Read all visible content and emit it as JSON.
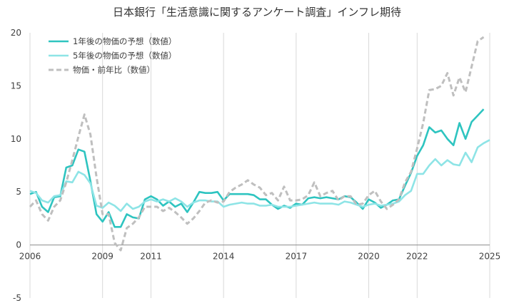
{
  "chart_data": {
    "type": "line",
    "title": "日本銀行「生活意識に関するアンケート調査」インフレ期待",
    "xlabel": "",
    "ylabel": "",
    "xlim": [
      2006,
      2025
    ],
    "ylim": [
      -5,
      20
    ],
    "grid": "vertical",
    "legend_position": "top-left",
    "x_ticks": [
      "2006",
      "2009",
      "2011",
      "2014",
      "2017",
      "2020",
      "2022",
      "2025"
    ],
    "y_ticks": [
      "20",
      "15",
      "10",
      "5",
      "0",
      "-5"
    ],
    "series": [
      {
        "name": "1年後の物価の予想（数値）",
        "color": "#2ec4c0",
        "dash": "solid",
        "points": [
          [
            2006.0,
            4.8
          ],
          [
            2006.25,
            5.0
          ],
          [
            2006.5,
            3.6
          ],
          [
            2006.75,
            3.1
          ],
          [
            2007.0,
            4.5
          ],
          [
            2007.25,
            4.6
          ],
          [
            2007.5,
            7.3
          ],
          [
            2007.75,
            7.5
          ],
          [
            2008.0,
            9.0
          ],
          [
            2008.25,
            8.8
          ],
          [
            2008.5,
            6.0
          ],
          [
            2008.75,
            2.9
          ],
          [
            2009.0,
            2.2
          ],
          [
            2009.25,
            3.1
          ],
          [
            2009.5,
            1.7
          ],
          [
            2009.75,
            1.7
          ],
          [
            2010.0,
            2.9
          ],
          [
            2010.25,
            2.6
          ],
          [
            2010.5,
            2.5
          ],
          [
            2010.75,
            4.3
          ],
          [
            2011.0,
            4.6
          ],
          [
            2011.25,
            4.3
          ],
          [
            2011.5,
            3.7
          ],
          [
            2011.75,
            4.1
          ],
          [
            2012.0,
            3.6
          ],
          [
            2012.25,
            3.9
          ],
          [
            2012.5,
            3.1
          ],
          [
            2012.75,
            4.0
          ],
          [
            2013.0,
            5.0
          ],
          [
            2013.25,
            4.9
          ],
          [
            2013.5,
            4.9
          ],
          [
            2013.75,
            5.0
          ],
          [
            2014.0,
            4.2
          ],
          [
            2014.25,
            4.8
          ],
          [
            2014.5,
            4.8
          ],
          [
            2014.75,
            4.8
          ],
          [
            2015.0,
            4.8
          ],
          [
            2015.25,
            4.7
          ],
          [
            2015.5,
            4.3
          ],
          [
            2015.75,
            4.3
          ],
          [
            2016.0,
            3.8
          ],
          [
            2016.25,
            3.4
          ],
          [
            2016.5,
            3.7
          ],
          [
            2016.75,
            3.5
          ],
          [
            2017.0,
            3.9
          ],
          [
            2017.25,
            3.8
          ],
          [
            2017.5,
            4.4
          ],
          [
            2017.75,
            4.5
          ],
          [
            2018.0,
            4.4
          ],
          [
            2018.25,
            4.5
          ],
          [
            2018.5,
            4.4
          ],
          [
            2018.75,
            4.3
          ],
          [
            2019.0,
            4.6
          ],
          [
            2019.25,
            4.5
          ],
          [
            2019.5,
            4.0
          ],
          [
            2019.75,
            3.4
          ],
          [
            2020.0,
            4.3
          ],
          [
            2020.25,
            4.0
          ],
          [
            2020.5,
            3.5
          ],
          [
            2020.75,
            3.8
          ],
          [
            2021.0,
            4.2
          ],
          [
            2021.25,
            4.3
          ],
          [
            2021.5,
            5.6
          ],
          [
            2021.75,
            6.8
          ],
          [
            2022.0,
            8.4
          ],
          [
            2022.25,
            9.4
          ],
          [
            2022.5,
            11.1
          ],
          [
            2022.75,
            10.6
          ],
          [
            2023.0,
            10.8
          ],
          [
            2023.25,
            10.0
          ],
          [
            2023.5,
            9.4
          ],
          [
            2023.75,
            11.5
          ],
          [
            2024.0,
            10.0
          ],
          [
            2024.25,
            11.6
          ],
          [
            2024.5,
            12.2
          ],
          [
            2024.75,
            12.8
          ]
        ]
      },
      {
        "name": "5年後の物価の予想（数値）",
        "color": "#8ee4e6",
        "dash": "solid",
        "points": [
          [
            2006.0,
            5.1
          ],
          [
            2006.25,
            4.9
          ],
          [
            2006.5,
            4.2
          ],
          [
            2006.75,
            4.0
          ],
          [
            2007.0,
            4.6
          ],
          [
            2007.25,
            4.7
          ],
          [
            2007.5,
            6.0
          ],
          [
            2007.75,
            5.9
          ],
          [
            2008.0,
            6.9
          ],
          [
            2008.25,
            6.6
          ],
          [
            2008.5,
            5.8
          ],
          [
            2008.75,
            3.7
          ],
          [
            2009.0,
            3.5
          ],
          [
            2009.25,
            4.0
          ],
          [
            2009.5,
            3.7
          ],
          [
            2009.75,
            3.2
          ],
          [
            2010.0,
            3.9
          ],
          [
            2010.25,
            3.4
          ],
          [
            2010.5,
            3.6
          ],
          [
            2010.75,
            4.1
          ],
          [
            2011.0,
            4.3
          ],
          [
            2011.25,
            4.1
          ],
          [
            2011.5,
            4.3
          ],
          [
            2011.75,
            4.1
          ],
          [
            2012.0,
            4.4
          ],
          [
            2012.25,
            4.1
          ],
          [
            2012.5,
            3.6
          ],
          [
            2012.75,
            4.0
          ],
          [
            2013.0,
            4.2
          ],
          [
            2013.25,
            4.2
          ],
          [
            2013.5,
            4.1
          ],
          [
            2013.75,
            4.1
          ],
          [
            2014.0,
            3.6
          ],
          [
            2014.25,
            3.8
          ],
          [
            2014.5,
            3.9
          ],
          [
            2014.75,
            4.0
          ],
          [
            2015.0,
            3.9
          ],
          [
            2015.25,
            3.9
          ],
          [
            2015.5,
            3.7
          ],
          [
            2015.75,
            3.7
          ],
          [
            2016.0,
            3.8
          ],
          [
            2016.25,
            3.6
          ],
          [
            2016.5,
            3.6
          ],
          [
            2016.75,
            3.6
          ],
          [
            2017.0,
            3.7
          ],
          [
            2017.25,
            3.8
          ],
          [
            2017.5,
            3.9
          ],
          [
            2017.75,
            4.0
          ],
          [
            2018.0,
            3.9
          ],
          [
            2018.25,
            3.9
          ],
          [
            2018.5,
            3.9
          ],
          [
            2018.75,
            3.8
          ],
          [
            2019.0,
            4.1
          ],
          [
            2019.25,
            4.0
          ],
          [
            2019.5,
            3.8
          ],
          [
            2019.75,
            3.6
          ],
          [
            2020.0,
            3.8
          ],
          [
            2020.25,
            3.9
          ],
          [
            2020.5,
            3.7
          ],
          [
            2020.75,
            3.8
          ],
          [
            2021.0,
            3.9
          ],
          [
            2021.25,
            4.1
          ],
          [
            2021.5,
            4.7
          ],
          [
            2021.75,
            5.1
          ],
          [
            2022.0,
            6.7
          ],
          [
            2022.25,
            6.7
          ],
          [
            2022.5,
            7.5
          ],
          [
            2022.75,
            8.1
          ],
          [
            2023.0,
            7.5
          ],
          [
            2023.25,
            8.0
          ],
          [
            2023.5,
            7.6
          ],
          [
            2023.75,
            7.5
          ],
          [
            2024.0,
            8.7
          ],
          [
            2024.25,
            7.8
          ],
          [
            2024.5,
            9.2
          ],
          [
            2024.75,
            9.6
          ],
          [
            2025.0,
            9.9
          ]
        ]
      },
      {
        "name": "物価・前年比（数値）",
        "color": "#bfbfbf",
        "dash": "dashed",
        "points": [
          [
            2006.0,
            3.6
          ],
          [
            2006.25,
            4.2
          ],
          [
            2006.5,
            2.9
          ],
          [
            2006.75,
            2.3
          ],
          [
            2007.0,
            3.6
          ],
          [
            2007.25,
            4.2
          ],
          [
            2007.5,
            5.9
          ],
          [
            2007.75,
            8.0
          ],
          [
            2008.0,
            10.2
          ],
          [
            2008.25,
            12.3
          ],
          [
            2008.5,
            10.4
          ],
          [
            2008.75,
            6.4
          ],
          [
            2009.0,
            2.9
          ],
          [
            2009.25,
            2.9
          ],
          [
            2009.5,
            0.2
          ],
          [
            2009.75,
            -0.5
          ],
          [
            2010.0,
            1.6
          ],
          [
            2010.25,
            2.0
          ],
          [
            2010.5,
            2.6
          ],
          [
            2010.75,
            3.6
          ],
          [
            2011.0,
            3.6
          ],
          [
            2011.25,
            3.6
          ],
          [
            2011.5,
            3.2
          ],
          [
            2011.75,
            3.5
          ],
          [
            2012.0,
            3.1
          ],
          [
            2012.25,
            2.6
          ],
          [
            2012.5,
            2.0
          ],
          [
            2012.75,
            2.5
          ],
          [
            2013.0,
            3.2
          ],
          [
            2013.25,
            4.0
          ],
          [
            2013.5,
            4.2
          ],
          [
            2013.75,
            4.0
          ],
          [
            2014.0,
            4.1
          ],
          [
            2014.25,
            5.0
          ],
          [
            2014.5,
            5.4
          ],
          [
            2014.75,
            5.7
          ],
          [
            2015.0,
            6.1
          ],
          [
            2015.25,
            5.7
          ],
          [
            2015.5,
            5.4
          ],
          [
            2015.75,
            4.7
          ],
          [
            2016.0,
            4.9
          ],
          [
            2016.25,
            4.2
          ],
          [
            2016.5,
            5.5
          ],
          [
            2016.75,
            4.2
          ],
          [
            2017.0,
            4.2
          ],
          [
            2017.25,
            4.3
          ],
          [
            2017.5,
            4.7
          ],
          [
            2017.75,
            5.9
          ],
          [
            2018.0,
            4.6
          ],
          [
            2018.25,
            4.9
          ],
          [
            2018.5,
            5.1
          ],
          [
            2018.75,
            4.2
          ],
          [
            2019.0,
            4.6
          ],
          [
            2019.25,
            4.6
          ],
          [
            2019.5,
            3.8
          ],
          [
            2019.75,
            3.9
          ],
          [
            2020.0,
            4.7
          ],
          [
            2020.25,
            5.1
          ],
          [
            2020.5,
            4.1
          ],
          [
            2020.75,
            3.4
          ],
          [
            2021.0,
            3.8
          ],
          [
            2021.25,
            4.3
          ],
          [
            2021.5,
            5.9
          ],
          [
            2021.75,
            6.9
          ],
          [
            2022.0,
            9.1
          ],
          [
            2022.25,
            11.5
          ],
          [
            2022.5,
            14.6
          ],
          [
            2022.75,
            14.7
          ],
          [
            2023.0,
            15.0
          ],
          [
            2023.25,
            16.2
          ],
          [
            2023.5,
            14.1
          ],
          [
            2023.75,
            15.8
          ],
          [
            2024.0,
            14.4
          ],
          [
            2024.25,
            16.8
          ],
          [
            2024.5,
            19.2
          ],
          [
            2024.75,
            19.6
          ]
        ]
      }
    ]
  }
}
